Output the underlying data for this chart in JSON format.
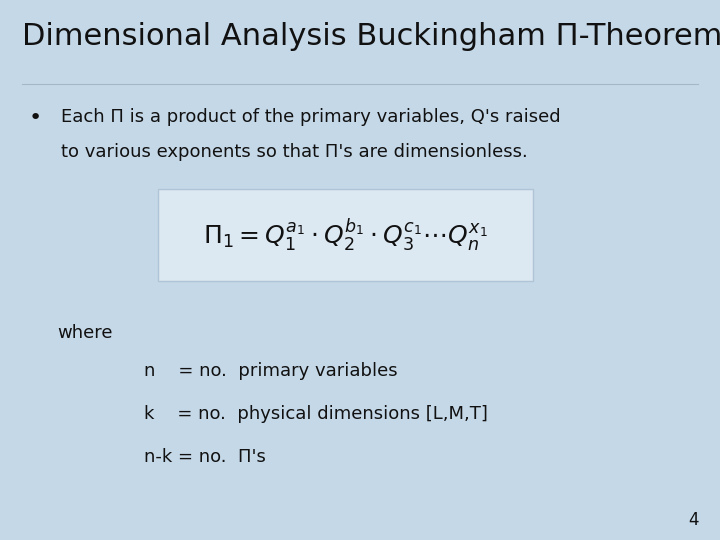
{
  "title": "Dimensional Analysis Buckingham Π-Theorem",
  "background_color": "#c5d8e8",
  "title_fontsize": 22,
  "bullet_text_line1": "Each Π is a product of the primary variables, Q's raised",
  "bullet_text_line2": "to various exponents so that Π's are dimensionless.",
  "formula": "$\\Pi_1 = Q_1^{a_1} \\cdot Q_2^{b_1} \\cdot Q_3^{c_1} \\cdots Q_n^{x_1}$",
  "where_text": "where",
  "n_text": "n    = no.  primary variables",
  "k_text": "k    = no.  physical dimensions [L,M,T]",
  "nk_text": "n-k = no.  Π's",
  "page_number": "4",
  "text_color": "#111111",
  "formula_box_facecolor": "#dce8f2",
  "formula_box_edgecolor": "#b0c4d8"
}
